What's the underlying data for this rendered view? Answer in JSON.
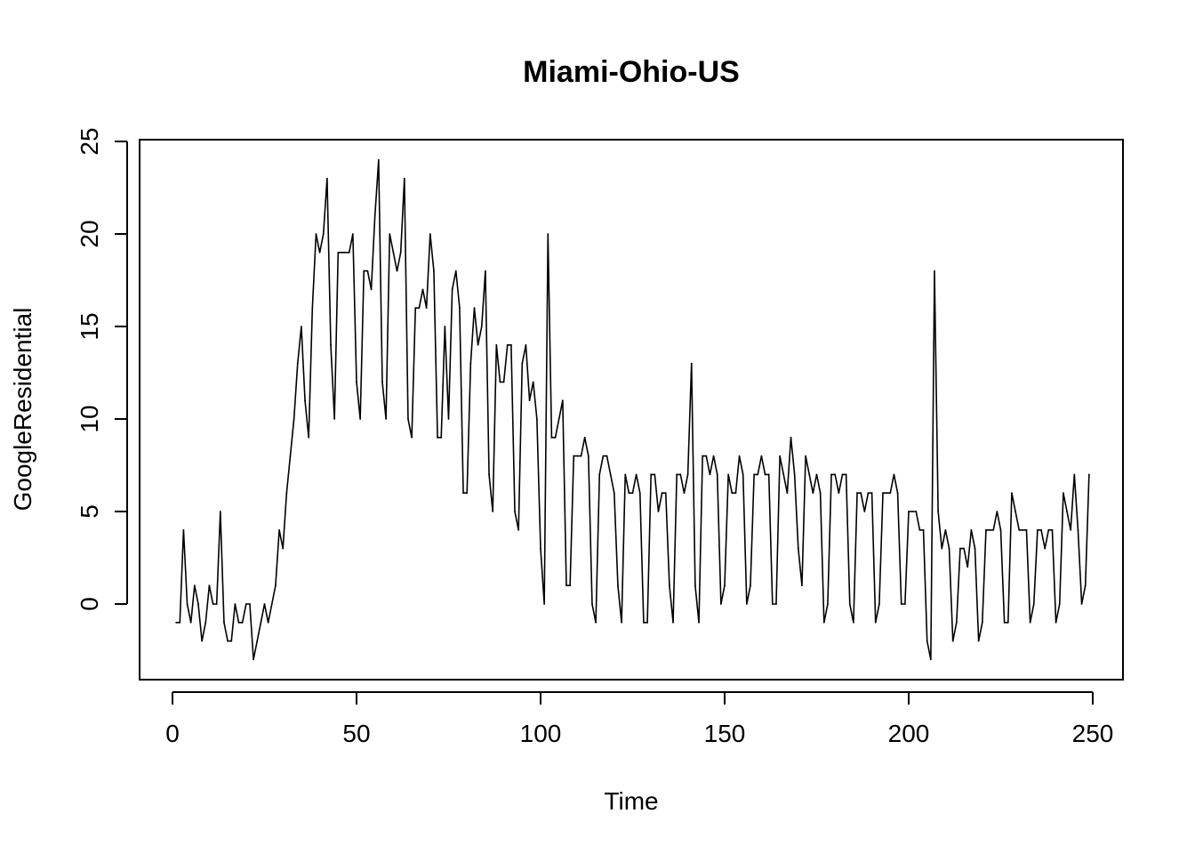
{
  "chart_data": {
    "type": "line",
    "title": "Miami-Ohio-US",
    "xlabel": "Time",
    "ylabel": "GoogleResidential",
    "xlim": [
      1,
      248
    ],
    "ylim": [
      -3,
      24
    ],
    "x_ticks": [
      0,
      50,
      100,
      150,
      200,
      250
    ],
    "y_ticks": [
      0,
      5,
      10,
      15,
      20,
      25
    ],
    "grid": false,
    "legend": "none",
    "line_color": "#000000",
    "series": [
      {
        "x_start": 1,
        "x_step": 1,
        "values": [
          -1,
          -1,
          4,
          0,
          -1,
          1,
          0,
          -2,
          -1,
          1,
          0,
          0,
          5,
          -1,
          -2,
          -2,
          0,
          -1,
          -1,
          0,
          0,
          -3,
          -2,
          -1,
          0,
          -1,
          0,
          1,
          4,
          3,
          6,
          8,
          10,
          13,
          15,
          11,
          9,
          16,
          20,
          19,
          20,
          23,
          14,
          10,
          19,
          19,
          19,
          19,
          20,
          12,
          10,
          18,
          18,
          17,
          21,
          24,
          12,
          10,
          20,
          19,
          18,
          19,
          23,
          10,
          9,
          16,
          16,
          17,
          16,
          20,
          18,
          9,
          9,
          15,
          10,
          17,
          18,
          16,
          6,
          6,
          13,
          16,
          14,
          15,
          18,
          7,
          5,
          14,
          12,
          12,
          14,
          14,
          5,
          4,
          13,
          14,
          11,
          12,
          10,
          3,
          0,
          20,
          9,
          9,
          10,
          11,
          1,
          1,
          8,
          8,
          8,
          9,
          8,
          0,
          -1,
          7,
          8,
          8,
          7,
          6,
          1,
          -1,
          7,
          6,
          6,
          7,
          6,
          -1,
          -1,
          7,
          7,
          5,
          6,
          6,
          1,
          -1,
          7,
          7,
          6,
          7,
          13,
          1,
          -1,
          8,
          8,
          7,
          8,
          7,
          0,
          1,
          7,
          6,
          6,
          8,
          7,
          0,
          1,
          7,
          7,
          8,
          7,
          7,
          0,
          0,
          8,
          7,
          6,
          9,
          7,
          3,
          1,
          8,
          7,
          6,
          7,
          6,
          -1,
          0,
          7,
          7,
          6,
          7,
          7,
          0,
          -1,
          6,
          6,
          5,
          6,
          6,
          -1,
          0,
          6,
          6,
          6,
          7,
          6,
          0,
          0,
          5,
          5,
          5,
          4,
          4,
          -2,
          -3,
          18,
          5,
          3,
          4,
          3,
          -2,
          -1,
          3,
          3,
          2,
          4,
          3,
          -2,
          -1,
          4,
          4,
          4,
          5,
          4,
          -1,
          -1,
          6,
          5,
          4,
          4,
          4,
          -1,
          0,
          4,
          4,
          3,
          4,
          4,
          -1,
          0,
          6,
          5,
          4,
          7,
          4,
          0,
          1,
          7
        ]
      }
    ]
  }
}
